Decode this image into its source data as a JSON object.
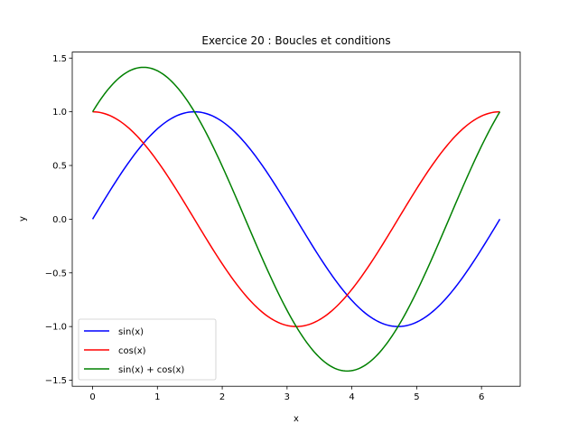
{
  "chart_data": {
    "type": "line",
    "title": "Exercice 20 : Boucles et conditions",
    "xlabel": "x",
    "ylabel": "y",
    "xlim": [
      -0.314,
      6.597
    ],
    "ylim": [
      -1.556,
      1.556
    ],
    "xticks": [
      0,
      1,
      2,
      3,
      4,
      5,
      6
    ],
    "yticks": [
      -1.5,
      -1.0,
      -0.5,
      0.0,
      0.5,
      1.0,
      1.5
    ],
    "ytick_labels": [
      "−1.5",
      "−1.0",
      "−0.5",
      "0.0",
      "0.5",
      "1.0",
      "1.5"
    ],
    "grid": false,
    "legend_position": "lower-left",
    "x_domain": [
      0,
      6.2832
    ],
    "series": [
      {
        "name": "sin(x)",
        "expr": "sin",
        "color": "#0000ff"
      },
      {
        "name": "cos(x)",
        "expr": "cos",
        "color": "#ff0000"
      },
      {
        "name": "sin(x) + cos(x)",
        "expr": "sin+cos",
        "color": "#008000"
      }
    ]
  }
}
